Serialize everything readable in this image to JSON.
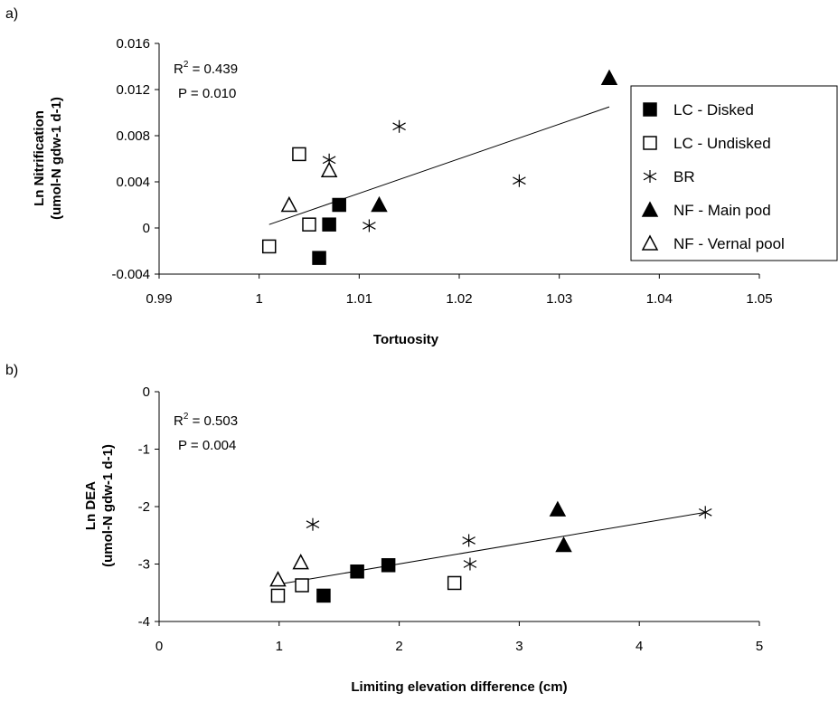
{
  "chart_data": [
    {
      "type": "scatter",
      "panel_label": "a)",
      "xlabel": "Tortuosity",
      "ylabel_line1": "Ln Nitrification",
      "ylabel_line2": "(umol-N gdw-1 d-1)",
      "xlim": [
        0.99,
        1.05
      ],
      "ylim": [
        -0.004,
        0.016
      ],
      "x_ticks": [
        {
          "value": 0.99,
          "label": "0.99"
        },
        {
          "value": 1.0,
          "label": "1"
        },
        {
          "value": 1.01,
          "label": "1.01"
        },
        {
          "value": 1.02,
          "label": "1.02"
        },
        {
          "value": 1.03,
          "label": "1.03"
        },
        {
          "value": 1.04,
          "label": "1.04"
        },
        {
          "value": 1.05,
          "label": "1.05"
        }
      ],
      "y_ticks": [
        {
          "value": -0.004,
          "label": "-0.004"
        },
        {
          "value": 0.0,
          "label": "0"
        },
        {
          "value": 0.004,
          "label": "0.004"
        },
        {
          "value": 0.008,
          "label": "0.008"
        },
        {
          "value": 0.012,
          "label": "0.012"
        },
        {
          "value": 0.016,
          "label": "0.016"
        }
      ],
      "grid": false,
      "stats": {
        "r2_prefix": "R",
        "r2_sup": "2",
        "r2_value": " = 0.439",
        "p_text": "P = 0.010"
      },
      "trendline": {
        "x": [
          1.001,
          1.035
        ],
        "y": [
          0.0003,
          0.0105
        ]
      },
      "series": [
        {
          "name": "LC - Disked",
          "marker": "filled-square",
          "x": [
            1.007,
            1.008,
            1.006
          ],
          "y": [
            0.0003,
            0.002,
            -0.0026
          ]
        },
        {
          "name": "LC - Undisked",
          "marker": "open-square",
          "x": [
            1.004,
            1.005,
            1.001
          ],
          "y": [
            0.0064,
            0.0003,
            -0.0016
          ]
        },
        {
          "name": "BR",
          "marker": "asterisk",
          "x": [
            1.014,
            1.007,
            1.011,
            1.026
          ],
          "y": [
            0.0088,
            0.0059,
            0.0002,
            0.0041
          ]
        },
        {
          "name": "NF - Main pod",
          "marker": "filled-triangle",
          "x": [
            1.035,
            1.012
          ],
          "y": [
            0.013,
            0.002
          ]
        },
        {
          "name": "NF - Vernal pool",
          "marker": "open-triangle",
          "x": [
            1.007,
            1.003
          ],
          "y": [
            0.005,
            0.002
          ]
        }
      ],
      "legend": {
        "placement": "right"
      }
    },
    {
      "type": "scatter",
      "panel_label": "b)",
      "xlabel": "Limiting elevation difference (cm)",
      "ylabel_line1": "Ln DEA",
      "ylabel_line2": "(umol-N gdw-1 d-1)",
      "xlim": [
        0,
        5
      ],
      "ylim": [
        -4,
        0
      ],
      "x_ticks": [
        {
          "value": 0,
          "label": "0"
        },
        {
          "value": 1,
          "label": "1"
        },
        {
          "value": 2,
          "label": "2"
        },
        {
          "value": 3,
          "label": "3"
        },
        {
          "value": 4,
          "label": "4"
        },
        {
          "value": 5,
          "label": "5"
        }
      ],
      "y_ticks": [
        {
          "value": -4,
          "label": "-4"
        },
        {
          "value": -3,
          "label": "-3"
        },
        {
          "value": -2,
          "label": "-2"
        },
        {
          "value": -1,
          "label": "-1"
        },
        {
          "value": 0,
          "label": "0"
        }
      ],
      "grid": false,
      "stats": {
        "r2_prefix": "R",
        "r2_sup": "2",
        "r2_value": " = 0.503",
        "p_text": "P = 0.004"
      },
      "trendline": {
        "x": [
          1.0,
          4.55
        ],
        "y": [
          -3.35,
          -2.1
        ]
      },
      "series": [
        {
          "name": "LC - Disked",
          "marker": "filled-square",
          "x": [
            1.37,
            1.65,
            1.91
          ],
          "y": [
            -3.55,
            -3.13,
            -3.02
          ]
        },
        {
          "name": "LC - Undisked",
          "marker": "open-square",
          "x": [
            0.99,
            1.19,
            2.46
          ],
          "y": [
            -3.55,
            -3.37,
            -3.33
          ]
        },
        {
          "name": "BR",
          "marker": "asterisk",
          "x": [
            1.28,
            2.58,
            2.59,
            4.55
          ],
          "y": [
            -2.31,
            -2.59,
            -3.0,
            -2.1
          ]
        },
        {
          "name": "NF - Main pod",
          "marker": "filled-triangle",
          "x": [
            3.32,
            3.37
          ],
          "y": [
            -2.05,
            -2.67
          ]
        },
        {
          "name": "NF - Vernal pool",
          "marker": "open-triangle",
          "x": [
            0.99,
            1.18
          ],
          "y": [
            -3.27,
            -2.97
          ]
        }
      ]
    }
  ]
}
